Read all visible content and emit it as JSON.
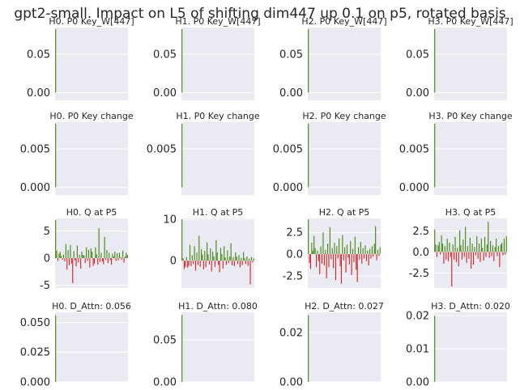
{
  "title": "gpt2-small. Impact on L5 of shifting dim447 up 0.1 on p5, rotated basis",
  "colors": {
    "positive": "#4a8a1c",
    "negative": "#d62728",
    "panel_bg": "#eaeaf2",
    "grid": "#ffffff"
  },
  "chart_data": [
    {
      "type": "bar",
      "title": "H0. P0 Key_W[447]",
      "ylim": [
        -0.01,
        0.085
      ],
      "yticks": [
        "0.00",
        "0.05"
      ],
      "ytick_values": [
        0,
        0.05
      ],
      "values": [
        0.083,
        0,
        0,
        0,
        0,
        0,
        0,
        0,
        0,
        0,
        0,
        0,
        0,
        0,
        0,
        0,
        0,
        0,
        0,
        0,
        0,
        0,
        0,
        0,
        0,
        0,
        0,
        0,
        0,
        0,
        0,
        0,
        0,
        0,
        0,
        0,
        0,
        0,
        0,
        0,
        0,
        0,
        0,
        0,
        0,
        0,
        0,
        0,
        0,
        0,
        0,
        0,
        0,
        0,
        0,
        0,
        0,
        0,
        0,
        0,
        0,
        0,
        0,
        0
      ]
    },
    {
      "type": "bar",
      "title": "H1. P0 Key_W[447]",
      "ylim": [
        -0.01,
        0.085
      ],
      "yticks": [
        "0.00",
        "0.05"
      ],
      "ytick_values": [
        0,
        0.05
      ],
      "values": [
        0.083,
        0,
        0,
        0,
        0,
        0,
        0,
        0,
        0,
        0,
        0,
        0,
        0,
        0,
        0,
        0,
        0,
        0,
        0,
        0,
        0,
        0,
        0,
        0,
        0,
        0,
        0,
        0,
        0,
        0,
        0,
        0,
        0,
        0,
        0,
        0,
        0,
        0,
        0,
        0,
        0,
        0,
        0,
        0,
        0,
        0,
        0,
        0,
        0,
        0,
        0,
        0,
        0,
        0,
        0,
        0,
        0,
        0,
        0,
        0,
        0,
        0,
        0,
        0
      ]
    },
    {
      "type": "bar",
      "title": "H2. P0 Key_W[447]",
      "ylim": [
        -0.01,
        0.085
      ],
      "yticks": [
        "0.00",
        "0.05"
      ],
      "ytick_values": [
        0,
        0.05
      ],
      "values": [
        0.083,
        0,
        0,
        0,
        0,
        0,
        0,
        0,
        0,
        0,
        0,
        0,
        0,
        0,
        0,
        0,
        0,
        0,
        0,
        0,
        0,
        0,
        0,
        0,
        0,
        0,
        0,
        0,
        0,
        0,
        0,
        0,
        0,
        0,
        0,
        0,
        0,
        0,
        0,
        0,
        0,
        0,
        0,
        0,
        0,
        0,
        0,
        0,
        0,
        0,
        0,
        0,
        0,
        0,
        0,
        0,
        0,
        0,
        0,
        0,
        0,
        0,
        0,
        0
      ]
    },
    {
      "type": "bar",
      "title": "H3. P0 Key_W[447]",
      "ylim": [
        -0.01,
        0.085
      ],
      "yticks": [
        "0.00",
        "0.05"
      ],
      "ytick_values": [
        0,
        0.05
      ],
      "values": [
        0.083,
        0,
        0,
        0,
        0,
        0,
        0,
        0,
        0,
        0,
        0,
        0,
        0,
        0,
        0,
        0,
        0,
        0,
        0,
        0,
        0,
        0,
        0,
        0,
        0,
        0,
        0,
        0,
        0,
        0,
        0,
        0,
        0,
        0,
        0,
        0,
        0,
        0,
        0,
        0,
        0,
        0,
        0,
        0,
        0,
        0,
        0,
        0,
        0,
        0,
        0,
        0,
        0,
        0,
        0,
        0,
        0,
        0,
        0,
        0,
        0,
        0,
        0,
        0
      ]
    },
    {
      "type": "bar",
      "title": "H0. P0 Key change",
      "ylim": [
        -0.001,
        0.0085
      ],
      "yticks": [
        "0.000",
        "0.005"
      ],
      "ytick_values": [
        0,
        0.005
      ],
      "values": [
        0.0083,
        0,
        0,
        0,
        0,
        0,
        0,
        0,
        0,
        0,
        0,
        0,
        0,
        0,
        0,
        0,
        0,
        0,
        0,
        0,
        0,
        0,
        0,
        0,
        0,
        0,
        0,
        0,
        0,
        0,
        0,
        0,
        0,
        0,
        0,
        0,
        0,
        0,
        0,
        0,
        0,
        0,
        0,
        0,
        0,
        0,
        0,
        0,
        0,
        0,
        0,
        0,
        0,
        0,
        0,
        0,
        0,
        0,
        0,
        0,
        0,
        0,
        0,
        0
      ]
    },
    {
      "type": "bar",
      "title": "H1. P0 Key change",
      "ylim": [
        -0.001,
        0.0085
      ],
      "yticks": [
        "0.005"
      ],
      "ytick_values": [
        0.005
      ],
      "values": [
        0.0083,
        0,
        0,
        0,
        0,
        0,
        0,
        0,
        0,
        0,
        0,
        0,
        0,
        0,
        0,
        0,
        0,
        0,
        0,
        0,
        0,
        0,
        0,
        0,
        0,
        0,
        0,
        0,
        0,
        0,
        0,
        0,
        0,
        0,
        0,
        0,
        0,
        0,
        0,
        0,
        0,
        0,
        0,
        0,
        0,
        0,
        0,
        0,
        0,
        0,
        0,
        0,
        0,
        0,
        0,
        0,
        0,
        0,
        0,
        0,
        0,
        0,
        0,
        0
      ]
    },
    {
      "type": "bar",
      "title": "H2. P0 Key change",
      "ylim": [
        -0.001,
        0.0085
      ],
      "yticks": [
        "0.000",
        "0.005"
      ],
      "ytick_values": [
        0,
        0.005
      ],
      "values": [
        0.0083,
        0,
        0,
        0,
        0,
        0,
        0,
        0,
        0,
        0,
        0,
        0,
        0,
        0,
        0,
        0,
        0,
        0,
        0,
        0,
        0,
        0,
        0,
        0,
        0,
        0,
        0,
        0,
        0,
        0,
        0,
        0,
        0,
        0,
        0,
        0,
        0,
        0,
        0,
        0,
        0,
        0,
        0,
        0,
        0,
        0,
        0,
        0,
        0,
        0,
        0,
        0,
        0,
        0,
        0,
        0,
        0,
        0,
        0,
        0,
        0,
        0,
        0,
        0
      ]
    },
    {
      "type": "bar",
      "title": "H3. P0 Key change",
      "ylim": [
        -0.001,
        0.0085
      ],
      "yticks": [
        "0.000",
        "0.005"
      ],
      "ytick_values": [
        0,
        0.005
      ],
      "values": [
        0.0083,
        0,
        0,
        0,
        0,
        0,
        0,
        0,
        0,
        0,
        0,
        0,
        0,
        0,
        0,
        0,
        0,
        0,
        0,
        0,
        0,
        0,
        0,
        0,
        0,
        0,
        0,
        0,
        0,
        0,
        0,
        0,
        0,
        0,
        0,
        0,
        0,
        0,
        0,
        0,
        0,
        0,
        0,
        0,
        0,
        0,
        0,
        0,
        0,
        0,
        0,
        0,
        0,
        0,
        0,
        0,
        0,
        0,
        0,
        0,
        0,
        0,
        0,
        0
      ]
    },
    {
      "type": "bar",
      "title": "H0. Q at P5",
      "ylim": [
        -5.5,
        7.3
      ],
      "yticks": [
        "5",
        "0",
        "-5"
      ],
      "ytick_values": [
        5,
        0,
        -5
      ],
      "values": [
        7.0,
        1.4,
        -0.5,
        0.8,
        1.2,
        0.4,
        -0.3,
        0.7,
        -0.6,
        2.6,
        -2.1,
        1.5,
        -1.3,
        2.4,
        -1.0,
        -4.6,
        1.3,
        -0.4,
        -1.5,
        2.3,
        -0.8,
        0.6,
        -1.9,
        1.2,
        0.6,
        0.5,
        -0.9,
        2.0,
        -0.5,
        1.5,
        -1.7,
        1.8,
        1.2,
        -1.4,
        -1.0,
        2.0,
        0.7,
        -1.2,
        5.5,
        -0.7,
        1.0,
        -0.6,
        -1.1,
        3.9,
        -0.3,
        1.5,
        -0.9,
        1.0,
        -0.4,
        -1.2,
        0.8,
        0.3,
        1.2,
        -0.5,
        0.9,
        -0.4,
        1.0,
        0.2,
        -0.3,
        1.4,
        -0.8,
        0.3,
        1.0,
        0.6
      ]
    },
    {
      "type": "bar",
      "title": "H1. Q at P5",
      "ylim": [
        -6.6,
        10.2
      ],
      "yticks": [
        "10",
        "0"
      ],
      "ytick_values": [
        10,
        0
      ],
      "values": [
        10.0,
        0.6,
        -2.0,
        -1.5,
        0.9,
        -1.7,
        -1.2,
        3.8,
        -1.3,
        1.3,
        -0.8,
        3.5,
        -2.4,
        2.0,
        -1.0,
        6.0,
        -1.5,
        2.8,
        1.5,
        -2.1,
        2.4,
        -1.6,
        4.4,
        1.5,
        -0.9,
        3.0,
        -2.6,
        2.2,
        1.0,
        -1.5,
        5.0,
        2.0,
        -1.0,
        -2.8,
        3.1,
        1.6,
        -1.9,
        3.5,
        0.8,
        -1.0,
        2.5,
        -0.6,
        1.0,
        4.2,
        -1.1,
        0.9,
        -1.3,
        2.0,
        1.0,
        -0.8,
        1.4,
        -1.6,
        0.7,
        -1.0,
        2.1,
        0.6,
        -0.8,
        1.0,
        -1.2,
        0.5,
        -5.7,
        0.9,
        -0.4,
        0.6
      ]
    },
    {
      "type": "bar",
      "title": "H2. Q at P5",
      "ylim": [
        -3.9,
        4.1
      ],
      "yticks": [
        "2.5",
        "0.0",
        "-2.5"
      ],
      "ytick_values": [
        2.5,
        0,
        -2.5
      ],
      "values": [
        4.0,
        -1.0,
        -1.7,
        1.3,
        0.4,
        2.1,
        0.7,
        -1.5,
        0.4,
        -0.8,
        -2.3,
        0.9,
        -1.1,
        2.5,
        -1.3,
        0.5,
        -2.8,
        1.2,
        -1.5,
        3.1,
        -0.6,
        0.7,
        -1.6,
        1.3,
        -3.0,
        0.9,
        -0.5,
        1.8,
        -1.4,
        -3.4,
        2.2,
        -0.7,
        0.8,
        -2.1,
        1.1,
        -0.4,
        -1.2,
        1.5,
        -2.4,
        0.6,
        -0.9,
        2.0,
        -1.8,
        -3.2,
        0.8,
        -0.6,
        1.4,
        -1.1,
        0.7,
        -0.5,
        1.0,
        -0.8,
        0.4,
        -1.3,
        0.6,
        -0.5,
        0.9,
        -0.3,
        1.2,
        3.2,
        -0.7,
        0.5,
        -0.2,
        0.8
      ]
    },
    {
      "type": "bar",
      "title": "H3. Q at P5",
      "ylim": [
        -4.3,
        4.0
      ],
      "yticks": [
        "2.5",
        "0.0",
        "-2.5"
      ],
      "ytick_values": [
        2.5,
        0,
        -2.5
      ],
      "values": [
        2.7,
        0.9,
        -0.6,
        0.8,
        1.2,
        -0.3,
        2.0,
        1.0,
        -1.4,
        0.7,
        -0.9,
        1.6,
        -1.1,
        1.1,
        -0.6,
        -4.1,
        0.9,
        -0.9,
        1.8,
        -1.2,
        0.5,
        -1.7,
        2.6,
        0.8,
        -0.9,
        1.5,
        -0.6,
        3.0,
        -1.3,
        0.7,
        -0.8,
        1.7,
        -2.0,
        1.0,
        -1.5,
        0.6,
        -0.4,
        1.9,
        -0.8,
        1.0,
        -1.2,
        1.6,
        0.5,
        -1.0,
        1.8,
        -0.6,
        0.9,
        3.6,
        -0.7,
        1.3,
        -0.5,
        0.8,
        -1.1,
        0.6,
        1.6,
        -0.5,
        0.7,
        -1.8,
        0.9,
        1.1,
        -0.4,
        1.6,
        -0.3,
        1.9
      ]
    },
    {
      "type": "bar",
      "title": "H0. D_Attn: 0.056",
      "ylim": [
        0,
        0.0585
      ],
      "yticks": [
        "0.050",
        "0.025",
        "0.000"
      ],
      "ytick_values": [
        0.05,
        0.025,
        0
      ],
      "values": [
        0.056,
        0,
        0,
        0,
        0,
        0,
        0,
        0,
        0,
        0,
        0,
        0,
        0,
        0,
        0,
        0,
        0,
        0,
        0,
        0,
        0,
        0,
        0,
        0,
        0,
        0,
        0,
        0,
        0,
        0,
        0,
        0,
        0,
        0,
        0,
        0,
        0,
        0,
        0,
        0,
        0,
        0,
        0,
        0,
        0,
        0,
        0,
        0,
        0,
        0,
        0,
        0,
        0,
        0,
        0,
        0,
        0,
        0,
        0,
        0,
        0,
        0,
        0,
        0
      ]
    },
    {
      "type": "bar",
      "title": "H1. D_Attn: 0.080",
      "ylim": [
        0,
        0.083
      ],
      "yticks": [
        "0.05",
        "0.00"
      ],
      "ytick_values": [
        0.05,
        0
      ],
      "values": [
        0.08,
        0,
        0,
        0,
        0,
        0,
        0,
        0,
        0,
        0,
        0,
        0,
        0,
        0,
        0,
        0,
        0,
        0,
        0,
        0,
        0,
        0,
        0,
        0,
        0,
        0,
        0,
        0,
        0,
        0,
        0,
        0,
        0,
        0,
        0,
        0,
        0,
        0,
        0,
        0,
        0,
        0,
        0,
        0,
        0,
        0,
        0,
        0,
        0,
        0,
        0,
        0,
        0,
        0,
        0,
        0,
        0,
        0,
        0,
        0,
        0,
        0,
        0,
        0
      ]
    },
    {
      "type": "bar",
      "title": "H2. D_Attn: 0.027",
      "ylim": [
        0,
        0.0282
      ],
      "yticks": [
        "0.02",
        "0.00"
      ],
      "ytick_values": [
        0.02,
        0
      ],
      "values": [
        0.027,
        0,
        0,
        0,
        0,
        0,
        0,
        0,
        0,
        0,
        0,
        0,
        0,
        0,
        0,
        0,
        0,
        0,
        0,
        0,
        0,
        0,
        0,
        0,
        0,
        0,
        0,
        0,
        0,
        0,
        0,
        0,
        0,
        0,
        0,
        0,
        0,
        0,
        0,
        0,
        0,
        0,
        0,
        0,
        0,
        0,
        0,
        0,
        0,
        0,
        0,
        0,
        0,
        0,
        0,
        0,
        0,
        0,
        0,
        0,
        0,
        0,
        0,
        0
      ]
    },
    {
      "type": "bar",
      "title": "H3. D_Attn: 0.020",
      "ylim": [
        0,
        0.021
      ],
      "yticks": [
        "0.02",
        "0.01",
        "0.00"
      ],
      "ytick_values": [
        0.02,
        0.01,
        0
      ],
      "values": [
        0.02,
        0,
        0,
        0,
        0,
        0,
        0,
        0,
        0,
        0,
        0,
        0,
        0,
        0,
        0,
        0,
        0,
        0,
        0,
        0,
        0,
        0,
        0,
        0,
        0,
        0,
        0,
        0,
        0,
        0,
        0,
        0,
        0,
        0,
        0,
        0,
        0,
        0,
        0,
        0,
        0,
        0,
        0,
        0,
        0,
        0,
        0,
        0,
        0,
        0,
        0,
        0,
        0,
        0,
        0,
        0,
        0,
        0,
        0,
        0,
        0,
        0,
        0,
        0
      ]
    }
  ]
}
